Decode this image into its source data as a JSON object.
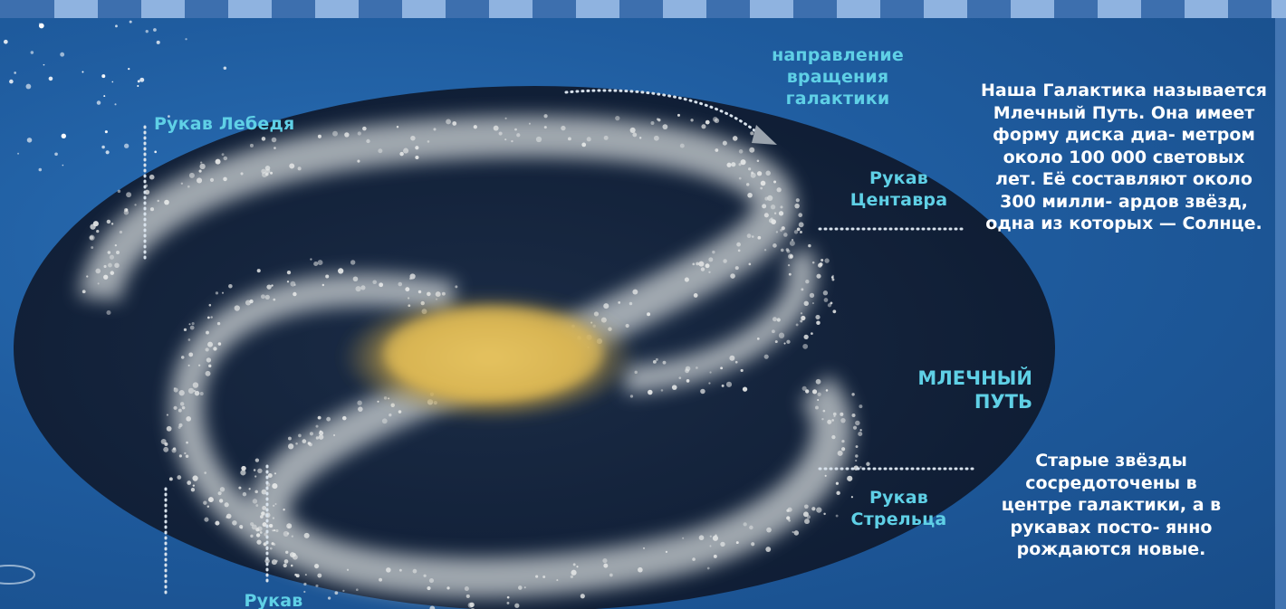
{
  "labels": {
    "rotation_direction": "направление вращения галактики",
    "cygnus_arm": "Рукав Лебедя",
    "centaurus_arm": "Рукав Центавра",
    "sagittarius_arm": "Рукав Стрельца",
    "bottom_arm": "Рукав",
    "galaxy_name": "МЛЕЧНЫЙ ПУТЬ"
  },
  "text": {
    "description": "Наша Галактика называется Млечный Путь. Она имеет форму диска диа- метром около 100 000 световых лет. Её составляют около 300 милли- ардов звёзд, одна из которых — Солнце.",
    "old_stars": "Старые звёзды сосредоточены в центре галактики, а в рукавах посто- янно рождаются новые."
  },
  "colors": {
    "background": "#1f5b9e",
    "disk": "#0f2038",
    "label": "#5fd0e6",
    "text": "#ffffff",
    "core": "#d6b04a"
  }
}
